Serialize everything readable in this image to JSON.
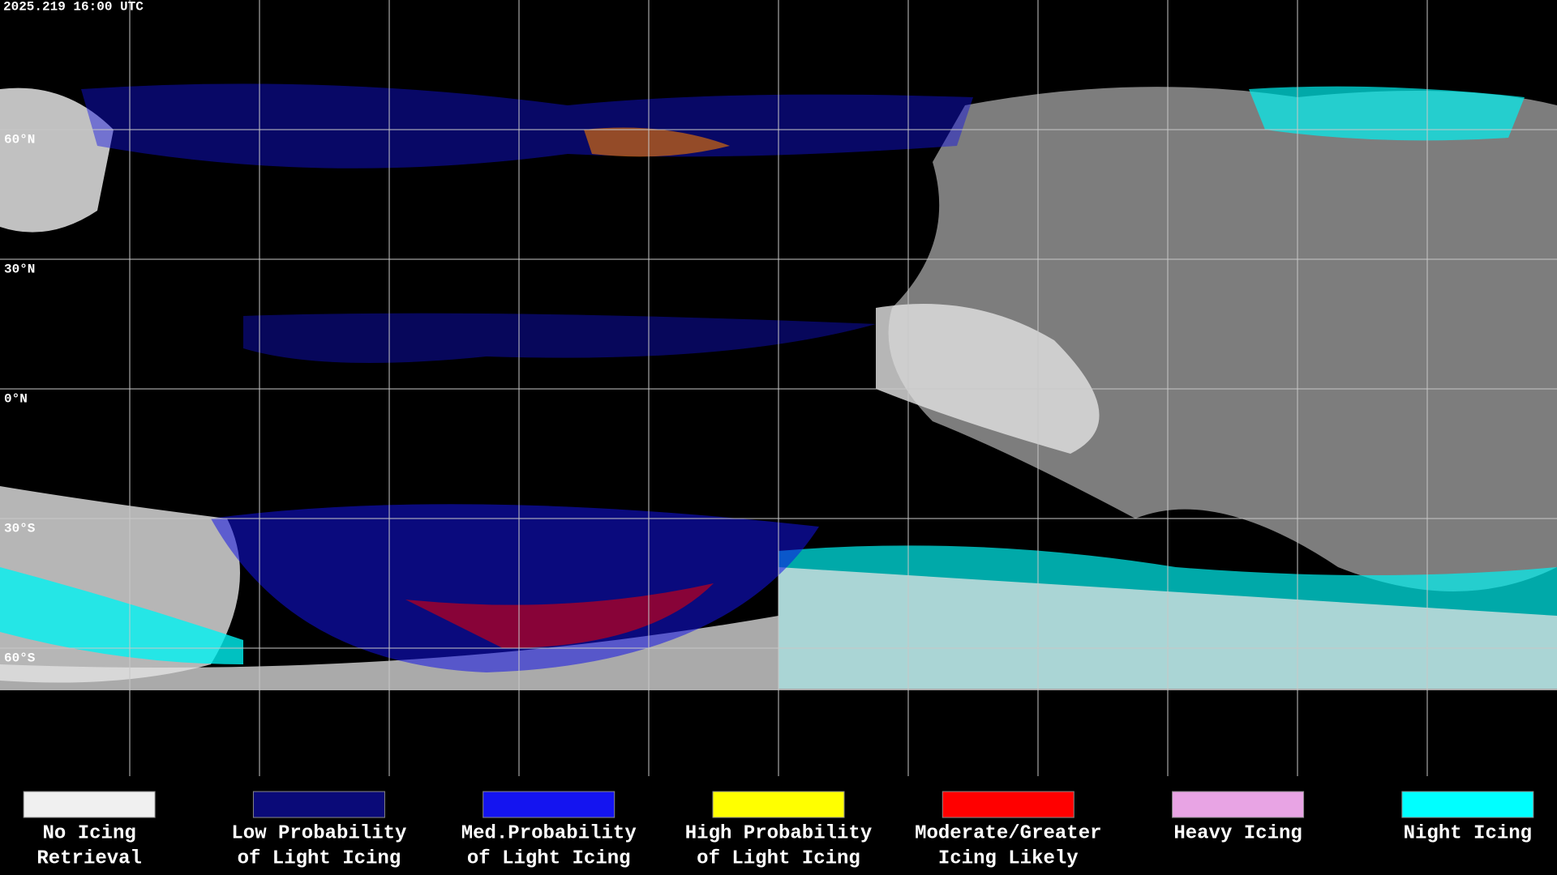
{
  "timestamp": "2025.219 16:00 UTC",
  "latitude_labels": [
    "60°N",
    "30°N",
    "0°N",
    "30°S",
    "60°S"
  ],
  "legend": [
    {
      "color": "#f0f0f0",
      "lines": [
        "No Icing",
        "Retrieval"
      ]
    },
    {
      "color": "#0a0a78",
      "lines": [
        "Low Probability",
        "of Light Icing"
      ]
    },
    {
      "color": "#1414f0",
      "lines": [
        "Med.Probability",
        "of Light Icing"
      ]
    },
    {
      "color": "#ffff00",
      "lines": [
        "High Probability",
        "of Light Icing"
      ]
    },
    {
      "color": "#ff0000",
      "lines": [
        "Moderate/Greater",
        "Icing Likely"
      ]
    },
    {
      "color": "#e8a4e4",
      "lines": [
        "Heavy Icing"
      ]
    },
    {
      "color": "#00ffff",
      "lines": [
        "Night Icing"
      ]
    }
  ]
}
